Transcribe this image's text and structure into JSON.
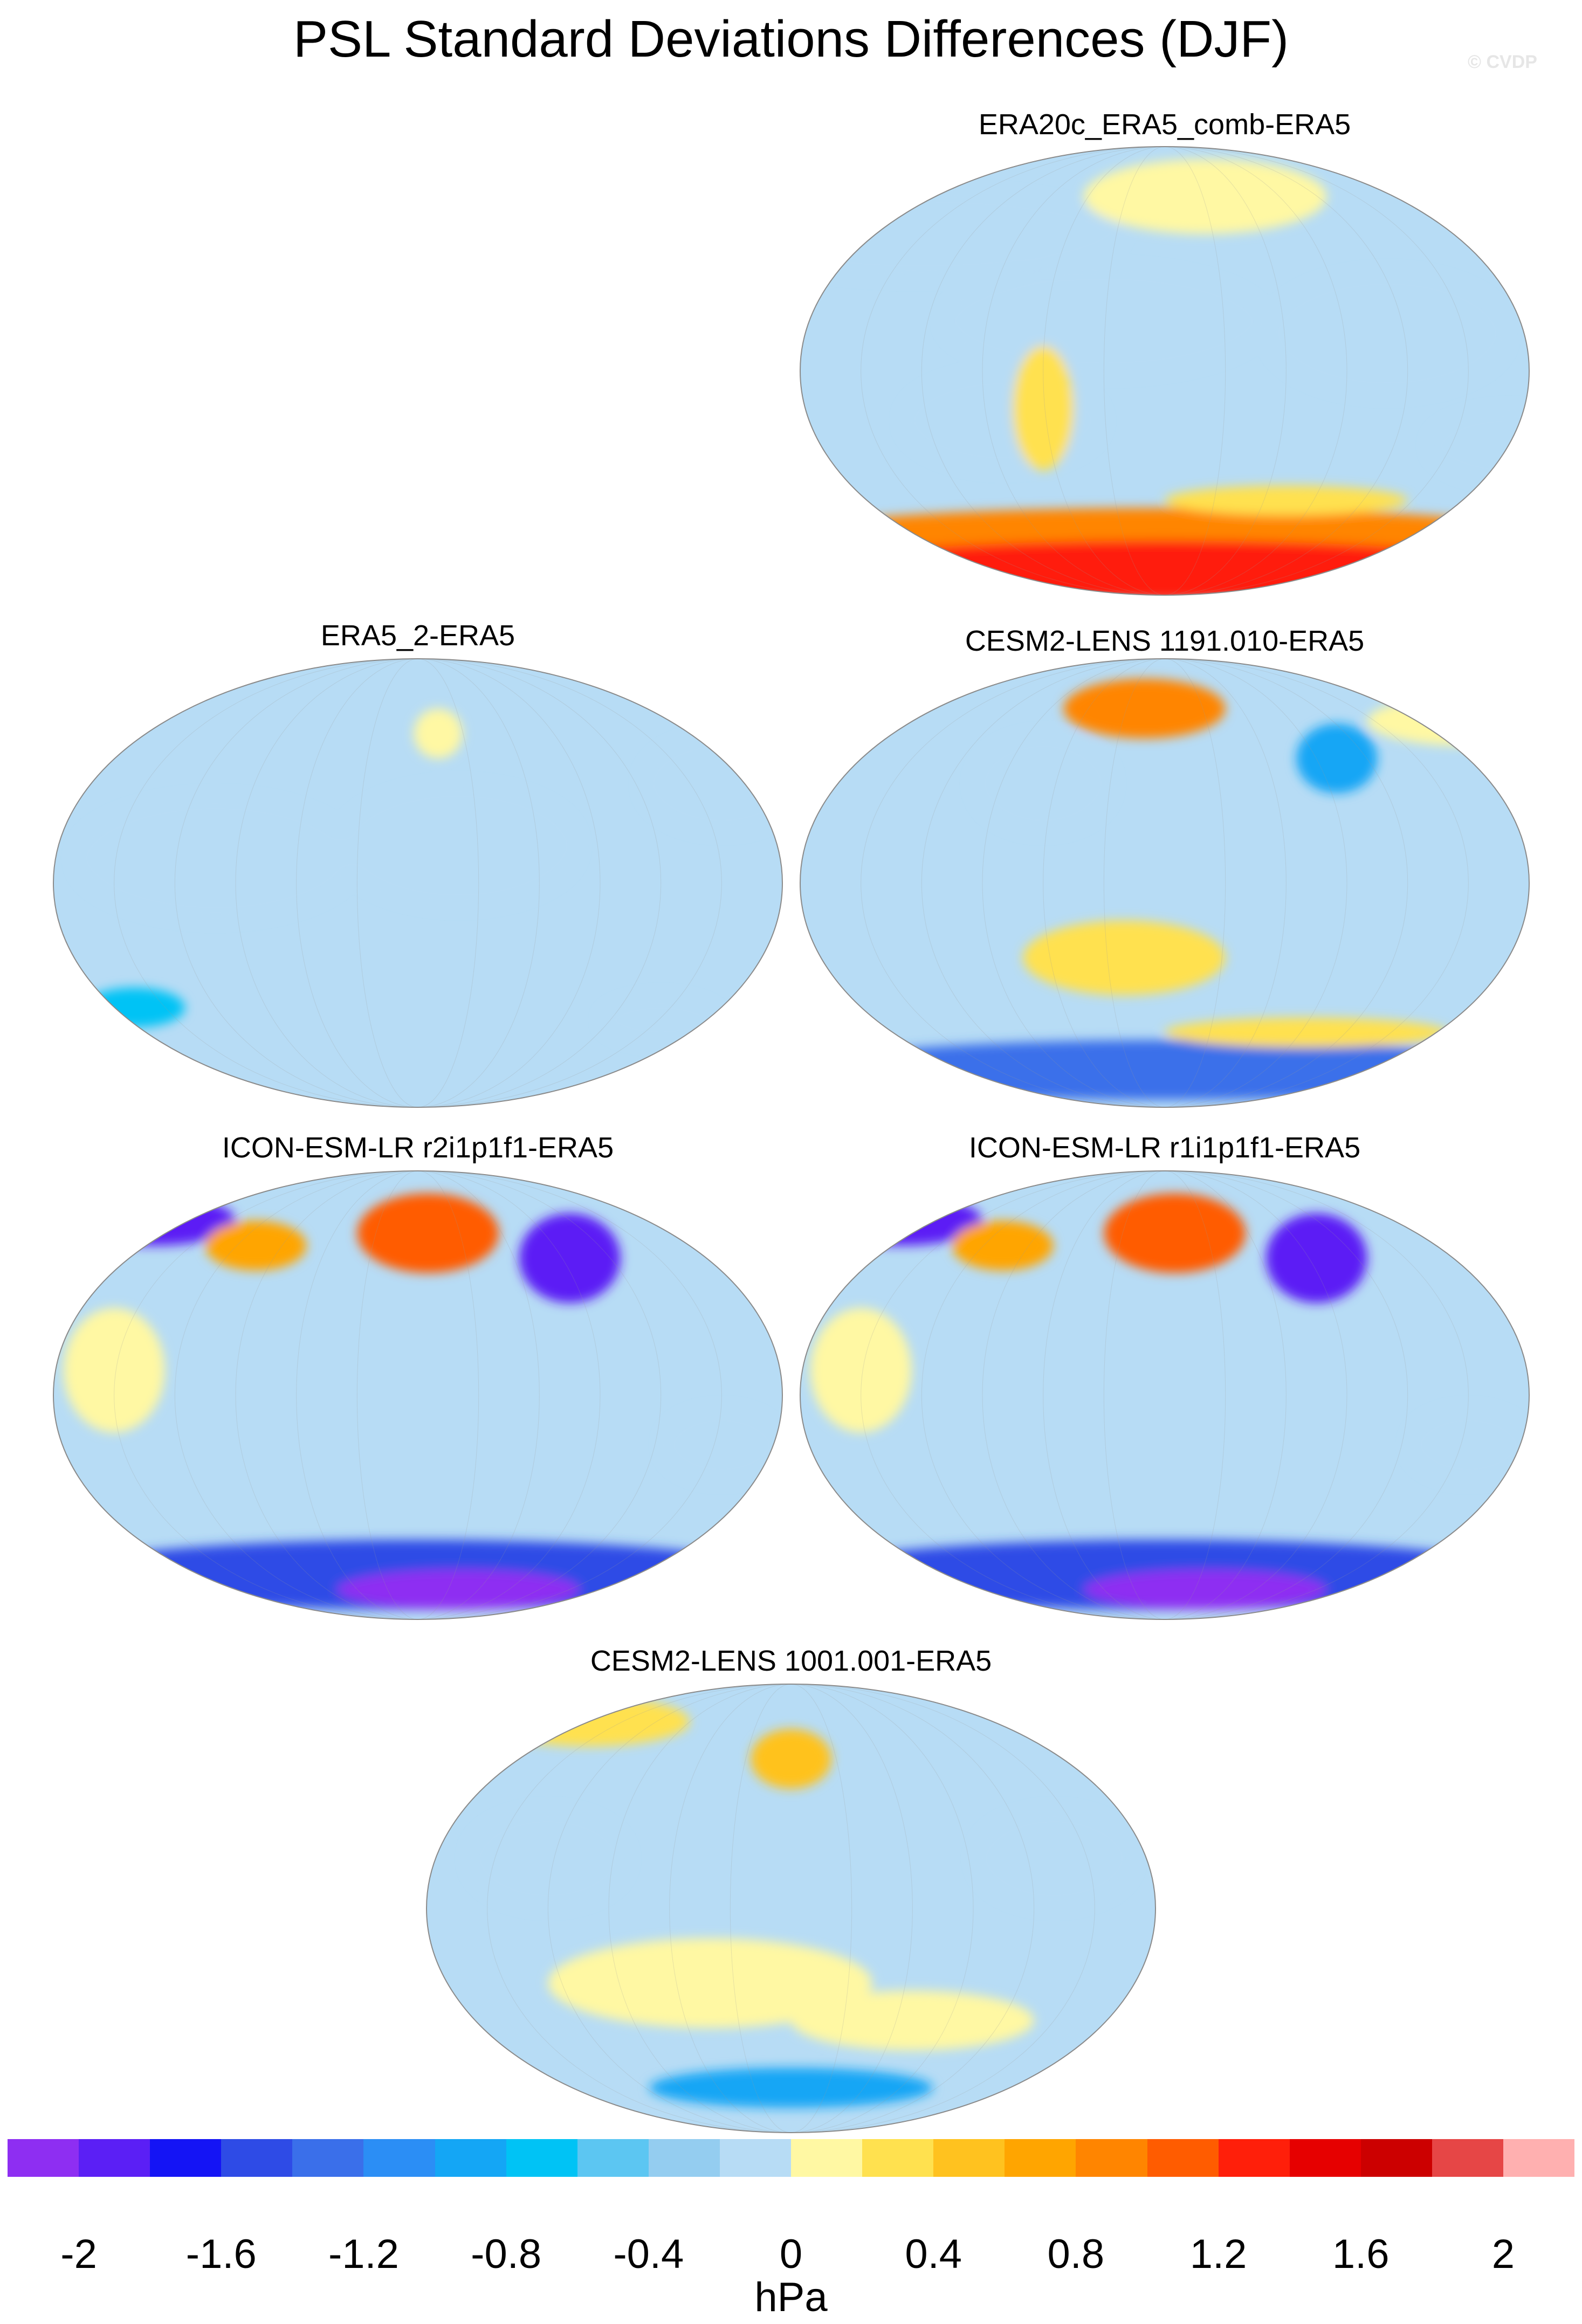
{
  "figure": {
    "title": "PSL Standard Deviations Differences (DJF)",
    "watermark": "© CVDP",
    "units": "hPa"
  },
  "panels": [
    {
      "label": "ERA20c_ERA5_comb-ERA5",
      "base": "#b7dcf5",
      "blobs": [
        {
          "lon": 0,
          "lat": -65,
          "rx": 180,
          "ry": 10,
          "c": 15
        },
        {
          "lon": 0,
          "lat": -80,
          "rx": 180,
          "ry": 12,
          "c": 17
        },
        {
          "lon": 60,
          "lat": -52,
          "rx": 60,
          "ry": 6,
          "c": 12
        },
        {
          "lon": -120,
          "lat": 55,
          "rx": 100,
          "ry": 18,
          "c": 10
        },
        {
          "lon": 20,
          "lat": 70,
          "rx": 60,
          "ry": 15,
          "c": 11
        },
        {
          "lon": -30,
          "lat": 20,
          "rx": 80,
          "ry": 22,
          "c": 10
        },
        {
          "lon": 110,
          "lat": 15,
          "rx": 60,
          "ry": 25,
          "c": 10
        },
        {
          "lon": -80,
          "lat": -20,
          "rx": 50,
          "ry": 20,
          "c": 10
        },
        {
          "lon": 170,
          "lat": -30,
          "rx": 40,
          "ry": 15,
          "c": 10
        },
        {
          "lon": -60,
          "lat": -15,
          "rx": 15,
          "ry": 25,
          "c": 12
        }
      ]
    },
    {
      "label": "ERA5_2-ERA5",
      "base": "#b7dcf5",
      "blobs": [
        {
          "lon": -100,
          "lat": 10,
          "rx": 70,
          "ry": 25,
          "c": 10
        },
        {
          "lon": 20,
          "lat": 15,
          "rx": 60,
          "ry": 25,
          "c": 10
        },
        {
          "lon": 150,
          "lat": 40,
          "rx": 40,
          "ry": 20,
          "c": 10
        },
        {
          "lon": 10,
          "lat": 60,
          "rx": 12,
          "ry": 10,
          "c": 11
        },
        {
          "lon": -140,
          "lat": -50,
          "rx": 25,
          "ry": 8,
          "c": 7
        },
        {
          "lon": 120,
          "lat": -55,
          "rx": 30,
          "ry": 10,
          "c": 10
        }
      ]
    },
    {
      "label": "CESM2-LENS 1191.010-ERA5",
      "base": "#b7dcf5",
      "blobs": [
        {
          "lon": 0,
          "lat": -75,
          "rx": 180,
          "ry": 12,
          "c": 4
        },
        {
          "lon": -10,
          "lat": 70,
          "rx": 40,
          "ry": 12,
          "c": 15
        },
        {
          "lon": 85,
          "lat": 50,
          "rx": 20,
          "ry": 14,
          "c": 6
        },
        {
          "lon": -60,
          "lat": 40,
          "rx": 35,
          "ry": 20,
          "c": 10
        },
        {
          "lon": -20,
          "lat": -30,
          "rx": 50,
          "ry": 15,
          "c": 12
        },
        {
          "lon": 70,
          "lat": -60,
          "rx": 70,
          "ry": 6,
          "c": 12
        },
        {
          "lon": 150,
          "lat": 65,
          "rx": 50,
          "ry": 10,
          "c": 11
        }
      ]
    },
    {
      "label": "ICON-ESM-LR r2i1p1f1-ERA5",
      "base": "#b7dcf5",
      "blobs": [
        {
          "lon": 0,
          "lat": -72,
          "rx": 180,
          "ry": 14,
          "c": 3
        },
        {
          "lon": 20,
          "lat": -78,
          "rx": 60,
          "ry": 8,
          "c": 0
        },
        {
          "lon": 5,
          "lat": 65,
          "rx": 35,
          "ry": 16,
          "c": 16
        },
        {
          "lon": 75,
          "lat": 55,
          "rx": 25,
          "ry": 18,
          "c": 1
        },
        {
          "lon": -130,
          "lat": 70,
          "rx": 40,
          "ry": 10,
          "c": 1
        },
        {
          "lon": -80,
          "lat": 60,
          "rx": 25,
          "ry": 10,
          "c": 14
        },
        {
          "lon": -150,
          "lat": 10,
          "rx": 25,
          "ry": 25,
          "c": 11
        },
        {
          "lon": 150,
          "lat": -20,
          "rx": 30,
          "ry": 15,
          "c": 10
        }
      ]
    },
    {
      "label": "ICON-ESM-LR r1i1p1f1-ERA5",
      "base": "#b7dcf5",
      "blobs": [
        {
          "lon": 0,
          "lat": -72,
          "rx": 180,
          "ry": 14,
          "c": 3
        },
        {
          "lon": 20,
          "lat": -78,
          "rx": 60,
          "ry": 8,
          "c": 0
        },
        {
          "lon": 5,
          "lat": 65,
          "rx": 35,
          "ry": 16,
          "c": 16
        },
        {
          "lon": 75,
          "lat": 55,
          "rx": 25,
          "ry": 18,
          "c": 1
        },
        {
          "lon": -130,
          "lat": 70,
          "rx": 40,
          "ry": 10,
          "c": 1
        },
        {
          "lon": -80,
          "lat": 60,
          "rx": 25,
          "ry": 10,
          "c": 14
        },
        {
          "lon": -150,
          "lat": 10,
          "rx": 25,
          "ry": 25,
          "c": 11
        },
        {
          "lon": 150,
          "lat": -20,
          "rx": 30,
          "ry": 15,
          "c": 10
        }
      ]
    },
    {
      "label": "CESM2-LENS 1001.001-ERA5",
      "base": "#b7dcf5",
      "blobs": [
        {
          "lon": -100,
          "lat": 75,
          "rx": 50,
          "ry": 10,
          "c": 12
        },
        {
          "lon": 0,
          "lat": 60,
          "rx": 20,
          "ry": 12,
          "c": 13
        },
        {
          "lon": -40,
          "lat": -30,
          "rx": 80,
          "ry": 18,
          "c": 11
        },
        {
          "lon": 60,
          "lat": -45,
          "rx": 60,
          "ry": 12,
          "c": 11
        },
        {
          "lon": 0,
          "lat": -72,
          "rx": 70,
          "ry": 8,
          "c": 6
        },
        {
          "lon": 130,
          "lat": 20,
          "rx": 40,
          "ry": 20,
          "c": 10
        },
        {
          "lon": -120,
          "lat": 20,
          "rx": 40,
          "ry": 20,
          "c": 10
        }
      ]
    }
  ],
  "colorbar": {
    "colors": [
      "#8e2ef2",
      "#5b1ff5",
      "#1414f5",
      "#2e4be6",
      "#3a6fea",
      "#2b8ef5",
      "#14a6f5",
      "#00c3f5",
      "#5cc6f2",
      "#94cdf0",
      "#b7dcf5",
      "#fff8a3",
      "#ffe14f",
      "#ffc21f",
      "#ffa500",
      "#ff8500",
      "#ff5c00",
      "#ff1f0a",
      "#e60000",
      "#cc0000",
      "#e64646",
      "#ffb0b0"
    ],
    "tick_labels": [
      "-2",
      "-1.6",
      "-1.2",
      "-0.8",
      "-0.4",
      "0",
      "0.4",
      "0.8",
      "1.2",
      "1.6",
      "2"
    ]
  }
}
